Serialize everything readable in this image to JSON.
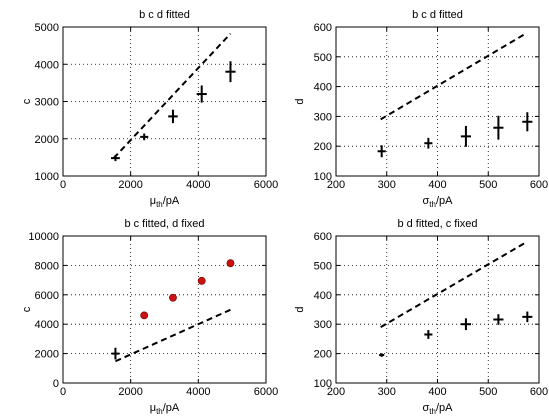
{
  "chart_data": [
    {
      "type": "scatter",
      "title": "b c d fitted",
      "xlabel": "μ_th/pA",
      "ylabel": "c",
      "xlim": [
        0,
        6000
      ],
      "ylim": [
        1000,
        5000
      ],
      "xticks": [
        0,
        2000,
        4000,
        6000
      ],
      "yticks": [
        1000,
        2000,
        3000,
        4000,
        5000
      ],
      "grid": true,
      "series": [
        {
          "style": "errorbar",
          "color": "#000000",
          "points": [
            {
              "x": 1550,
              "y": 1480,
              "xerr": 130,
              "yerr": 80
            },
            {
              "x": 2400,
              "y": 2050,
              "xerr": 120,
              "yerr": 90
            },
            {
              "x": 3250,
              "y": 2600,
              "xerr": 140,
              "yerr": 180
            },
            {
              "x": 4100,
              "y": 3200,
              "xerr": 150,
              "yerr": 230
            },
            {
              "x": 4950,
              "y": 3800,
              "xerr": 150,
              "yerr": 280
            }
          ]
        },
        {
          "style": "dashed-line",
          "color": "#000000",
          "points": [
            {
              "x": 1500,
              "y": 1480
            },
            {
              "x": 4950,
              "y": 4820
            }
          ]
        }
      ]
    },
    {
      "type": "scatter",
      "title": "b c d fitted",
      "xlabel": "σ_th/pA",
      "ylabel": "d",
      "xlim": [
        200,
        600
      ],
      "ylim": [
        100,
        600
      ],
      "xticks": [
        200,
        300,
        400,
        500,
        600
      ],
      "yticks": [
        100,
        200,
        300,
        400,
        500,
        600
      ],
      "grid": true,
      "series": [
        {
          "style": "errorbar",
          "color": "#000000",
          "points": [
            {
              "x": 290,
              "y": 183,
              "xerr": 8,
              "yerr": 20
            },
            {
              "x": 382,
              "y": 210,
              "xerr": 8,
              "yerr": 18
            },
            {
              "x": 456,
              "y": 233,
              "xerr": 10,
              "yerr": 35
            },
            {
              "x": 520,
              "y": 262,
              "xerr": 10,
              "yerr": 40
            },
            {
              "x": 577,
              "y": 282,
              "xerr": 10,
              "yerr": 32
            }
          ]
        },
        {
          "style": "dashed-line",
          "color": "#000000",
          "points": [
            {
              "x": 288,
              "y": 290
            },
            {
              "x": 576,
              "y": 580
            }
          ]
        }
      ]
    },
    {
      "type": "scatter",
      "title": "b c fitted, d fixed",
      "xlabel": "μ_th/pA",
      "ylabel": "c",
      "xlim": [
        0,
        6000
      ],
      "ylim": [
        0,
        10000
      ],
      "xticks": [
        0,
        2000,
        4000,
        6000
      ],
      "yticks": [
        0,
        2000,
        4000,
        6000,
        8000,
        10000
      ],
      "grid": true,
      "series": [
        {
          "style": "errorbar",
          "color": "#000000",
          "points": [
            {
              "x": 1550,
              "y": 2000,
              "xerr": 120,
              "yerr": 400
            }
          ]
        },
        {
          "style": "dots",
          "color": "#cc1111",
          "points": [
            {
              "x": 2400,
              "y": 4600
            },
            {
              "x": 3250,
              "y": 5800
            },
            {
              "x": 4100,
              "y": 6950
            },
            {
              "x": 4950,
              "y": 8150
            }
          ]
        },
        {
          "style": "dashed-line",
          "color": "#000000",
          "points": [
            {
              "x": 1550,
              "y": 1480
            },
            {
              "x": 4950,
              "y": 4980
            }
          ]
        }
      ]
    },
    {
      "type": "scatter",
      "title": "b d fitted, c fixed",
      "xlabel": "σ_th/pA",
      "ylabel": "d",
      "xlim": [
        200,
        600
      ],
      "ylim": [
        100,
        600
      ],
      "xticks": [
        200,
        300,
        400,
        500,
        600
      ],
      "yticks": [
        100,
        200,
        300,
        400,
        500,
        600
      ],
      "grid": true,
      "series": [
        {
          "style": "errorbar",
          "color": "#000000",
          "points": [
            {
              "x": 290,
              "y": 195,
              "xerr": 5,
              "yerr": 6
            },
            {
              "x": 382,
              "y": 265,
              "xerr": 8,
              "yerr": 15
            },
            {
              "x": 456,
              "y": 300,
              "xerr": 10,
              "yerr": 20
            },
            {
              "x": 520,
              "y": 316,
              "xerr": 10,
              "yerr": 18
            },
            {
              "x": 577,
              "y": 325,
              "xerr": 10,
              "yerr": 18
            }
          ]
        },
        {
          "style": "dashed-line",
          "color": "#000000",
          "points": [
            {
              "x": 288,
              "y": 290
            },
            {
              "x": 576,
              "y": 580
            }
          ]
        }
      ]
    }
  ]
}
